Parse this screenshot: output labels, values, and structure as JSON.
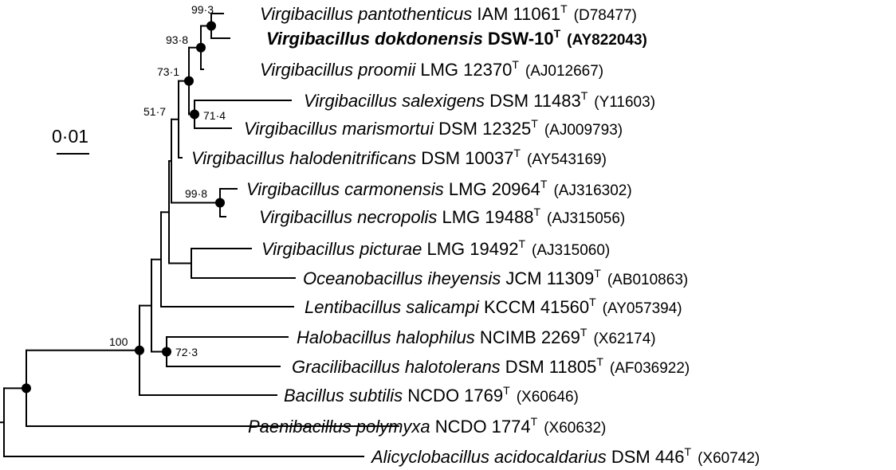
{
  "tree": {
    "taxa": [
      {
        "id": "t1",
        "genus": "Virgibacillus",
        "species": "pantothenticus",
        "strain": "IAM 11061",
        "type_mark": "T",
        "accession": "(D78477)",
        "bold": false
      },
      {
        "id": "t2",
        "genus": "Virgibacillus",
        "species": "dokdonensis",
        "strain": "DSW-10",
        "type_mark": "T",
        "accession": "(AY822043)",
        "bold": true
      },
      {
        "id": "t3",
        "genus": "Virgibacillus",
        "species": "proomii",
        "strain": "LMG 12370",
        "type_mark": "T",
        "accession": "(AJ012667)",
        "bold": false
      },
      {
        "id": "t4",
        "genus": "Virgibacillus",
        "species": "salexigens",
        "strain": "DSM 11483",
        "type_mark": "T",
        "accession": "(Y11603)",
        "bold": false
      },
      {
        "id": "t5",
        "genus": "Virgibacillus",
        "species": "marismortui",
        "strain": "DSM 12325",
        "type_mark": "T",
        "accession": "(AJ009793)",
        "bold": false
      },
      {
        "id": "t6",
        "genus": "Virgibacillus",
        "species": "halodenitrificans",
        "strain": "DSM 10037",
        "type_mark": "T",
        "accession": "(AY543169)",
        "bold": false
      },
      {
        "id": "t7",
        "genus": "Virgibacillus",
        "species": "carmonensis",
        "strain": "LMG 20964",
        "type_mark": "T",
        "accession": "(AJ316302)",
        "bold": false
      },
      {
        "id": "t8",
        "genus": "Virgibacillus",
        "species": "necropolis",
        "strain": "LMG 19488",
        "type_mark": "T",
        "accession": "(AJ315056)",
        "bold": false
      },
      {
        "id": "t9",
        "genus": "Virgibacillus",
        "species": "picturae",
        "strain": "LMG 19492",
        "type_mark": "T",
        "accession": "(AJ315060)",
        "bold": false
      },
      {
        "id": "t10",
        "genus": "Oceanobacillus",
        "species": "iheyensis",
        "strain": "JCM 11309",
        "type_mark": "T",
        "accession": "(AB010863)",
        "bold": false
      },
      {
        "id": "t11",
        "genus": "Lentibacillus",
        "species": "salicampi",
        "strain": "KCCM 41560",
        "type_mark": "T",
        "accession": "(AY057394)",
        "bold": false
      },
      {
        "id": "t12",
        "genus": "Halobacillus",
        "species": "halophilus",
        "strain": "NCIMB 2269",
        "type_mark": "T",
        "accession": "(X62174)",
        "bold": false
      },
      {
        "id": "t13",
        "genus": "Gracilibacillus",
        "species": "halotolerans",
        "strain": "DSM 11805",
        "type_mark": "T",
        "accession": "(AF036922)",
        "bold": false
      },
      {
        "id": "t14",
        "genus": "Bacillus",
        "species": "subtilis",
        "strain": "NCDO 1769",
        "type_mark": "T",
        "accession": "(X60646)",
        "bold": false
      },
      {
        "id": "t15",
        "genus": "Paenibacillus",
        "species": "polymyxa",
        "strain": "NCDO 1774",
        "type_mark": "T",
        "accession": "(X60632)",
        "bold": false
      },
      {
        "id": "t16",
        "genus": "Alicyclobacillus",
        "species": "acidocaldarius",
        "strain": "DSM 446",
        "type_mark": "T",
        "accession": "(X60742)",
        "bold": false
      }
    ],
    "bootstrap_values": {
      "n1": "99·3",
      "n2": "93·8",
      "n4": "71·4",
      "n3": "73·1",
      "n5": "51·7",
      "n7": "99·8",
      "n11": "72·3",
      "n13": "100"
    },
    "filled_nodes": [
      "n1",
      "n2",
      "n3",
      "n4",
      "n7",
      "n11",
      "n13",
      "n14"
    ]
  },
  "scale_bar": {
    "label": "0·01"
  }
}
